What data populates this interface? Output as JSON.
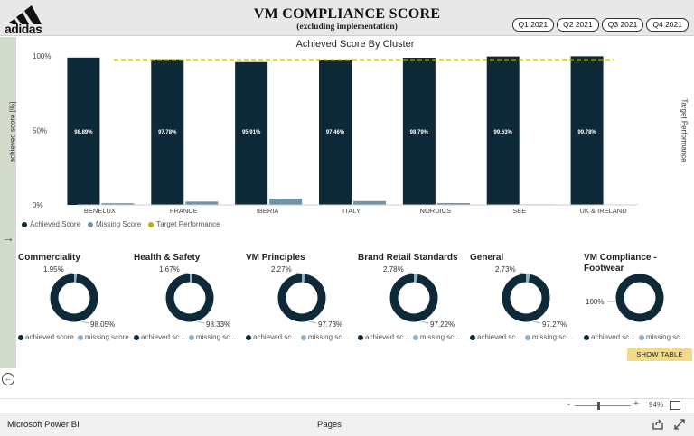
{
  "header": {
    "logo_text": "adidas",
    "title": "VM COMPLIANCE SCORE",
    "subtitle": "(excluding implementation)",
    "quarters": [
      "Q1 2021",
      "Q2 2021",
      "Q3 2021",
      "Q4 2021"
    ]
  },
  "chart_data": {
    "type": "bar",
    "title": "Achieved Score By Cluster",
    "ylabel": "achieved score [%]",
    "y2label": "Target Performance",
    "categories": [
      "BENELUX",
      "FRANCE",
      "IBERIA",
      "ITALY",
      "NORDICS",
      "SEE",
      "UK & IRELAND"
    ],
    "series": [
      {
        "name": "Achieved Score",
        "values": [
          98.89,
          97.78,
          95.91,
          97.46,
          98.79,
          99.63,
          99.78
        ],
        "color": "#0e2a38"
      },
      {
        "name": "Missing Score",
        "values": [
          1.11,
          2.22,
          4.09,
          2.54,
          1.21,
          0.37,
          0.22
        ],
        "color": "#6e94a8"
      }
    ],
    "data_labels": [
      "98.89%",
      "97.78%",
      "95.91%",
      "97.46%",
      "98.79%",
      "99.63%",
      "99.78%"
    ],
    "target": {
      "name": "Target Performance",
      "value": 90,
      "color": "#b5b200"
    },
    "yticks": [
      "0%",
      "50%",
      "100%"
    ],
    "ylim": [
      0,
      100
    ],
    "legend_position": "bottom-left"
  },
  "donuts": [
    {
      "title": "Commerciality",
      "achieved": 98.05,
      "missing": 1.95,
      "achieved_label": "98.05%",
      "missing_label": "1.95%",
      "legend": [
        "achieved score",
        "missing score"
      ]
    },
    {
      "title": "Health & Safety",
      "achieved": 98.33,
      "missing": 1.67,
      "achieved_label": "98.33%",
      "missing_label": "1.67%",
      "legend": [
        "achieved sc...",
        "missing sc..."
      ]
    },
    {
      "title": "VM Principles",
      "achieved": 97.73,
      "missing": 2.27,
      "achieved_label": "97.73%",
      "missing_label": "2.27%",
      "legend": [
        "achieved sc...",
        "missing sc..."
      ]
    },
    {
      "title": "Brand Retail Standards",
      "achieved": 97.22,
      "missing": 2.78,
      "achieved_label": "97.22%",
      "missing_label": "2.78%",
      "legend": [
        "achieved sc...",
        "missing sc..."
      ]
    },
    {
      "title": "General",
      "achieved": 97.27,
      "missing": 2.73,
      "achieved_label": "97.27%",
      "missing_label": "2.73%",
      "legend": [
        "achieved sc...",
        "missing sc..."
      ]
    },
    {
      "title": "VM Compliance - Footwear",
      "achieved": 100,
      "missing": 0,
      "achieved_label": "100%",
      "missing_label": "",
      "legend": [
        "achieved sc...",
        "missing sc..."
      ]
    }
  ],
  "colors": {
    "achieved": "#0e2a38",
    "missing": "#8fb3c4"
  },
  "show_table_label": "SHOW TABLE",
  "footer": {
    "zoom_minus": "-",
    "zoom_plus": "+",
    "zoom": "94%",
    "brand": "Microsoft Power BI",
    "pages": "Pages"
  }
}
